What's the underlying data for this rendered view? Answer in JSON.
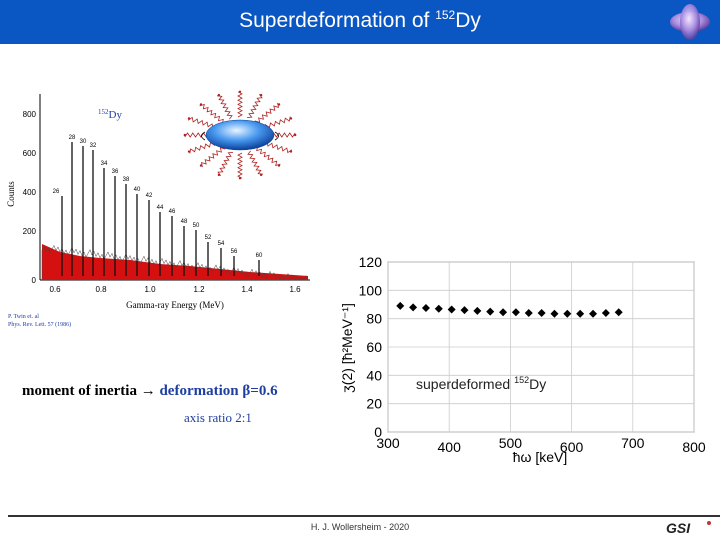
{
  "header": {
    "title_prefix": "Superdeformation of ",
    "title_mass": "152",
    "title_element": "Dy"
  },
  "spectrum": {
    "nucleus_mass": "152",
    "nucleus_element": "Dy",
    "ylabel": "Counts",
    "xlabel": "Gamma-ray Energy (MeV)",
    "yticks": [
      "0",
      "200",
      "400",
      "600",
      "800"
    ],
    "xticks": [
      "0.6",
      "0.8",
      "1.0",
      "1.2",
      "1.4",
      "1.6"
    ],
    "spin_labels": [
      "26",
      "28",
      "30",
      "32",
      "34",
      "36",
      "38",
      "40",
      "42",
      "44",
      "46",
      "48",
      "50",
      "52",
      "54",
      "56",
      "60"
    ],
    "reference_line1": "P. Twin et. al",
    "reference_line2": "Phys. Rev. Lett. 57 (1986)"
  },
  "caption": {
    "main_black": "moment of inertia → ",
    "main_blue": "deformation β=0.6",
    "sub": "axis ratio 2:1"
  },
  "chart_data": {
    "type": "scatter",
    "title": "",
    "xlabel": "ħω [keV]",
    "ylabel": "ʒ(2) [ħ²MeV⁻¹]",
    "xlim": [
      300,
      800
    ],
    "ylim": [
      0,
      120
    ],
    "xticks": [
      "300",
      "400",
      "500",
      "600",
      "700",
      "800"
    ],
    "yticks": [
      "0",
      "20",
      "40",
      "60",
      "80",
      "100",
      "120"
    ],
    "annotation_text": "superdeformed ",
    "annotation_mass": "152",
    "annotation_element": "Dy",
    "grid": true,
    "color": "#000000",
    "x": [
      320,
      341,
      362,
      383,
      404,
      425,
      446,
      467,
      488,
      509,
      530,
      551,
      572,
      593,
      614,
      635,
      656,
      677
    ],
    "y": [
      89,
      88,
      87.5,
      87,
      86.5,
      86,
      85.5,
      85,
      84.5,
      84.5,
      84,
      84,
      83.5,
      83.5,
      83.5,
      83.5,
      84,
      84.5
    ]
  },
  "footer": {
    "text": "H. J. Wollersheim - 2020",
    "logo_text": "GSI"
  }
}
